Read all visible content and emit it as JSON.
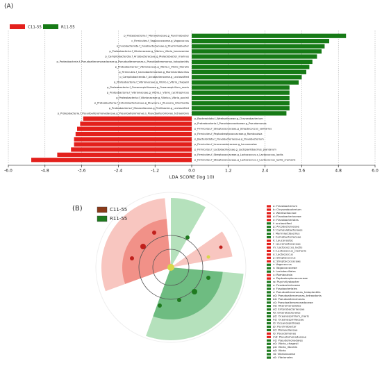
{
  "panels": {
    "a": "(A)",
    "b": "(B)"
  },
  "chart_data": {
    "type": "bar",
    "orientation": "horizontal",
    "categories": [
      "p_Proteobacteria.f_Moraxellaceae.g_Psychrobacter",
      "c_Firmicutes.f_Vagococcaceae.g_Vagococcus",
      "p_Fusobacteriota.f_Fusobacteriaceae.g_Psychrilyobacter",
      "p_Proteobacteria.f_Vibrionaceae.g_Vibrio.s_Vibrio_toranzoniae",
      "p_Campilobacterota.f_Arcobacteraceae.g_Malaciobacter_marinus",
      "p_Proteobacteria.f_Pseudoalteromonadaceae.g_Pseudoalteromonas.s_Pseudoalteromonas_haloplanktis",
      "p_Proteobacteria.f_Vibrionaceae.g_Vibrio.s_Vibrio_litoralis",
      "p_Firmicutes.f_Carnobacteriaceae.g_Marinilactibacillus",
      "p_Campilobacterota.f_Arcobacteraceae.g_unclassified",
      "p_Proteobacteria.f_Vibrionaceae.g_Vibrio.s_Vibrio_chagasii",
      "p_Proteobacteria.f_Oceanospirillaceae.g_Oceanospirillum_maris",
      "p_Proteobacteria.f_Vibrionaceae.g_Vibrio.s_Vibrio_cyclitrophicus",
      "p_Proteobacteria.f_Vibrionaceae.g_Vibrio.s_Vibrio_pacinii",
      "p_Proteobacteria.f_Enterobacteriaceae.g_Kluyvera.s_Kluyvera_intermedia",
      "p_Proteobacteria.f_Moraxellaceae.g_Perlilbacter.g_unclassified",
      "p_Proteobacteria.f_Pseudoalteromonadaceae.g_Pseudoalteromonas.s_Pseudoalteromonas_tetraodonis",
      "p_Bacteroidota.f_Weeksellaceae.g_Chryseobacterium",
      "p_Proteobacteria.f_Pseudomonadaceae.g_Pseudomonas",
      "p_Firmicutes.f_Streptococcaceae.g_Streptococcus_salivarius",
      "p_Firmicutes.f_Peptostreptococcaceae.g_Romboutsia",
      "p_Bacteroidota.f_Flavobacteriaceae.g_Flavobacterium",
      "p_Firmicutes.f_Leuconostocaceae.g_Leuconostoc",
      "p_Firmicutes.f_Lactobacillaceae.g_Lactiplantibacillus_plantarum",
      "p_Firmicutes.f_Streptococcaceae.g_Lactococcus.s_Lactococcus_lactis",
      "p_Firmicutes.f_Streptococcaceae.g_Lactococcus.s_Lactococcus_lactis_cremoris"
    ],
    "series": [
      {
        "name": "C11-55",
        "color": "#e3201c",
        "values": [
          null,
          null,
          null,
          null,
          null,
          null,
          null,
          null,
          null,
          null,
          null,
          null,
          null,
          null,
          null,
          null,
          -3.55,
          -3.65,
          -3.75,
          -3.8,
          -3.85,
          -3.85,
          -3.95,
          -4.4,
          -5.25
        ]
      },
      {
        "name": "R11-55",
        "color": "#167a16",
        "values": [
          5.05,
          4.5,
          4.35,
          4.25,
          4.1,
          3.95,
          3.85,
          3.75,
          3.6,
          3.5,
          3.2,
          3.2,
          3.2,
          3.2,
          3.2,
          3.1,
          null,
          null,
          null,
          null,
          null,
          null,
          null,
          null,
          null
        ]
      }
    ],
    "xlim": [
      -6,
      6
    ],
    "xticks": [
      {
        "value": -6,
        "label": "-6.0"
      },
      {
        "value": -4.8,
        "label": "-4.8"
      },
      {
        "value": -3.6,
        "label": "-3.6"
      },
      {
        "value": -2.4,
        "label": "-2.4"
      },
      {
        "value": -1.2,
        "label": "-1.2"
      },
      {
        "value": 0,
        "label": "0.0"
      },
      {
        "value": 1.2,
        "label": "1.2"
      },
      {
        "value": 2.4,
        "label": "2.4"
      },
      {
        "value": 3.6,
        "label": "3.6"
      },
      {
        "value": 4.8,
        "label": "4.8"
      },
      {
        "value": 6,
        "label": "6.0"
      }
    ],
    "xlabel": "LDA SCORE (log 10)",
    "grid": true
  },
  "cladogram": {
    "legend": [
      {
        "label": "C11-55",
        "color": "#8b3a1a"
      },
      {
        "label": "R11-55",
        "color": "#1f7a1f"
      }
    ],
    "key": [
      {
        "label": "a: Flavobacterium",
        "color": "#e3201c"
      },
      {
        "label": "b: Chryseobacterium",
        "color": "#e3201c"
      },
      {
        "label": "c: Weeksellaceae",
        "color": "#e3201c"
      },
      {
        "label": "d: Flavobacteriaceae",
        "color": "#e3201c"
      },
      {
        "label": "e: Flavobacteriales",
        "color": "#e3201c"
      },
      {
        "label": "f: unclassified",
        "color": "#1f7a1f"
      },
      {
        "label": "g: Arcobacteraceae",
        "color": "#1f7a1f"
      },
      {
        "label": "h: Campylobacterales",
        "color": "#1f7a1f"
      },
      {
        "label": "i: Marinilactibacillus",
        "color": "#1f7a1f"
      },
      {
        "label": "j: Carnobacteriaceae",
        "color": "#1f7a1f"
      },
      {
        "label": "k: Leuconostoc",
        "color": "#e3201c"
      },
      {
        "label": "l: Leuconostocaceae",
        "color": "#e3201c"
      },
      {
        "label": "m: Lactococcus_lactis",
        "color": "#e3201c"
      },
      {
        "label": "n: Lactococcus_cremoris",
        "color": "#e3201c"
      },
      {
        "label": "o: Lactococcus",
        "color": "#e3201c"
      },
      {
        "label": "p: Streptococcus",
        "color": "#e3201c"
      },
      {
        "label": "q: Streptococcaceae",
        "color": "#e3201c"
      },
      {
        "label": "r: Vagococcus",
        "color": "#1f7a1f"
      },
      {
        "label": "s: Vagococcaceae",
        "color": "#1f7a1f"
      },
      {
        "label": "t: Lactobacillales",
        "color": "#1f7a1f"
      },
      {
        "label": "u: Romboutsia",
        "color": "#e3201c"
      },
      {
        "label": "v: Peptostreptococcaceae",
        "color": "#e3201c"
      },
      {
        "label": "w: Psychrilyobacter",
        "color": "#1f7a1f"
      },
      {
        "label": "x: Fusobacteriaceae",
        "color": "#1f7a1f"
      },
      {
        "label": "y: Fusobacteriales",
        "color": "#1f7a1f"
      },
      {
        "label": "z: Pseudoalteromonas_haloplanktis",
        "color": "#1f7a1f"
      },
      {
        "label": "a0: Pseudoalteromonas_tetraodonis",
        "color": "#1f7a1f"
      },
      {
        "label": "b0: Pseudoalteromonas",
        "color": "#1f7a1f"
      },
      {
        "label": "c0: Pseudoalteromonadaceae",
        "color": "#1f7a1f"
      },
      {
        "label": "d0: Alteromonadales",
        "color": "#1f7a1f"
      },
      {
        "label": "e0: Enterobacteriaceae",
        "color": "#1f7a1f"
      },
      {
        "label": "f0: Enterobacterales",
        "color": "#1f7a1f"
      },
      {
        "label": "g0: Oceanospirillum_maris",
        "color": "#1f7a1f"
      },
      {
        "label": "h0: Oceanospirillaceae",
        "color": "#1f7a1f"
      },
      {
        "label": "i0: Oceanospirillales",
        "color": "#1f7a1f"
      },
      {
        "label": "j0: Psychrobacter",
        "color": "#1f7a1f"
      },
      {
        "label": "k0: Moraxellaceae",
        "color": "#1f7a1f"
      },
      {
        "label": "l0: Pseudomonas",
        "color": "#e3201c"
      },
      {
        "label": "m0: Pseudomonadaceae",
        "color": "#e3201c"
      },
      {
        "label": "n0: Pseudomonadales",
        "color": "#1f7a1f"
      },
      {
        "label": "o0: Vibrio_chagasii",
        "color": "#1f7a1f"
      },
      {
        "label": "p0: Vibrio_litoralis",
        "color": "#1f7a1f"
      },
      {
        "label": "q0: Vibrio",
        "color": "#1f7a1f"
      },
      {
        "label": "r0: Vibrionaceae",
        "color": "#1f7a1f"
      },
      {
        "label": "s0: Vibrionales",
        "color": "#1f7a1f"
      }
    ]
  }
}
